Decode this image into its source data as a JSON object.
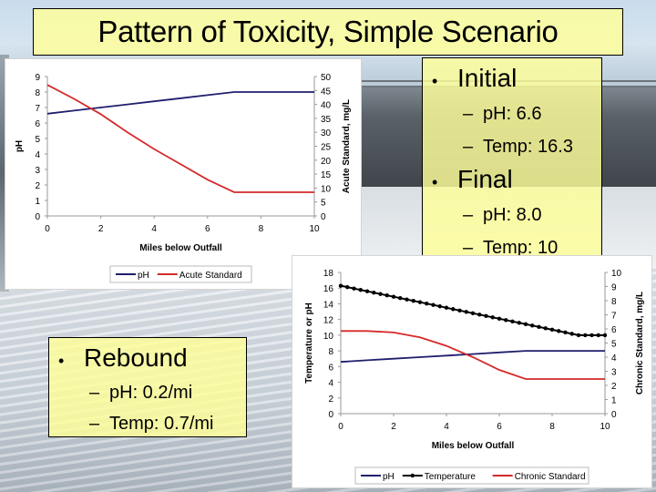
{
  "slide": {
    "title": "Pattern of Toxicity, Simple Scenario",
    "info_box": {
      "items": [
        {
          "label": "Initial",
          "subs": [
            "pH: 6.6",
            "Temp: 16.3"
          ]
        },
        {
          "label": "Final",
          "subs": [
            "pH: 8.0",
            "Temp: 10"
          ]
        }
      ]
    },
    "rebound_box": {
      "label": "Rebound",
      "subs": [
        "pH: 0.2/mi",
        "Temp: 0.7/mi"
      ]
    },
    "bullet_glyph": "•",
    "dash_glyph": "–"
  },
  "colors": {
    "ph": "#1f1f6e",
    "acute": "#d42a2a",
    "chronic": "#d42a2a",
    "temperature": "#000000",
    "box_yellow": "#ffff99"
  },
  "chart_data": [
    {
      "type": "line",
      "title": "",
      "xlabel": "Miles below Outfall",
      "ylabel": "pH",
      "y2label": "Acute Standard, mg/L",
      "x_ticks": [
        "0",
        "2",
        "4",
        "6",
        "8",
        "10"
      ],
      "y_ticks": [
        "0",
        "1",
        "2",
        "3",
        "4",
        "5",
        "6",
        "7",
        "8",
        "9"
      ],
      "y2_ticks": [
        "0",
        "5",
        "10",
        "15",
        "20",
        "25",
        "30",
        "35",
        "40",
        "45",
        "50"
      ],
      "xlim": [
        0,
        10
      ],
      "ylim": [
        0,
        9
      ],
      "y2lim": [
        0,
        50
      ],
      "grid": false,
      "legend_position": "bottom",
      "x": [
        0,
        1,
        2,
        3,
        4,
        5,
        6,
        7,
        8,
        9,
        10
      ],
      "series": [
        {
          "name": "pH",
          "axis": "left",
          "values": [
            6.6,
            6.8,
            7.0,
            7.2,
            7.4,
            7.6,
            7.8,
            8.0,
            8.0,
            8.0,
            8.0
          ]
        },
        {
          "name": "Acute Standard",
          "axis": "right",
          "values": [
            47,
            42,
            36.5,
            30,
            24,
            18.5,
            13,
            8.5,
            8.5,
            8.5,
            8.5
          ]
        }
      ]
    },
    {
      "type": "line",
      "title": "",
      "xlabel": "Miles below Outfall",
      "ylabel": "Temperature or pH",
      "y2label": "Chronic Standard, mg/L",
      "x_ticks": [
        "0",
        "2",
        "4",
        "6",
        "8",
        "10"
      ],
      "y_ticks": [
        "0",
        "2",
        "4",
        "6",
        "8",
        "10",
        "12",
        "14",
        "16",
        "18"
      ],
      "y2_ticks": [
        "0",
        "1",
        "2",
        "3",
        "4",
        "5",
        "6",
        "7",
        "8",
        "9",
        "10"
      ],
      "xlim": [
        0,
        10
      ],
      "ylim": [
        0,
        18
      ],
      "y2lim": [
        0,
        10
      ],
      "grid": false,
      "legend_position": "bottom",
      "x": [
        0,
        1,
        2,
        3,
        4,
        5,
        6,
        7,
        8,
        9,
        10
      ],
      "series": [
        {
          "name": "pH",
          "axis": "left",
          "values": [
            6.6,
            6.8,
            7.0,
            7.2,
            7.4,
            7.6,
            7.8,
            8.0,
            8.0,
            8.0,
            8.0
          ]
        },
        {
          "name": "Temperature",
          "axis": "left",
          "markers": true,
          "values": [
            16.3,
            15.6,
            14.9,
            14.2,
            13.5,
            12.8,
            12.1,
            11.4,
            10.7,
            10.0,
            10.0
          ]
        },
        {
          "name": "Chronic Standard",
          "axis": "right",
          "values": [
            5.85,
            5.85,
            5.75,
            5.4,
            4.8,
            4.0,
            3.1,
            2.45,
            2.45,
            2.45,
            2.45
          ]
        }
      ]
    }
  ]
}
